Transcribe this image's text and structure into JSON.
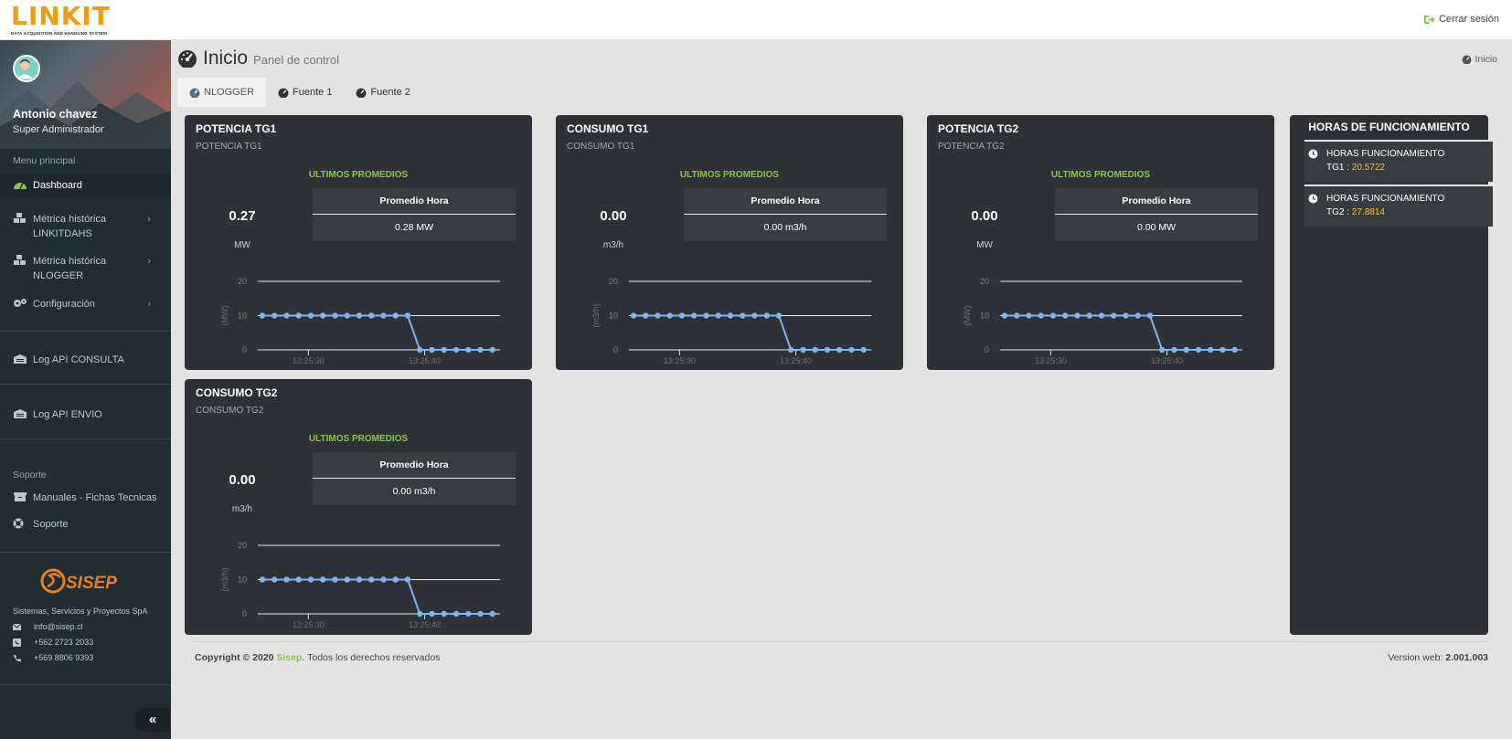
{
  "header": {
    "logo_text": "LINKIT",
    "logo_subtitle": "DATA ACQUISITION AND HANDLING SYSTEM",
    "logout_label": "Cerrar sesión"
  },
  "sidebar": {
    "user_name": "Antonio chavez",
    "user_role": "Super Administrador",
    "menu_header": "Menu principal",
    "items": [
      {
        "label": "Dashboard"
      },
      {
        "label": "Métrica histórica LINKITDAHS"
      },
      {
        "label": "Métrica histórica NLOGGER"
      },
      {
        "label": "Configuración"
      },
      {
        "label": "Log API CONSULTA"
      },
      {
        "label": "Log API ENVIO"
      }
    ],
    "support_header": "Soporte",
    "support_items": [
      {
        "label": "Manuales - Fichas Tecnicas"
      },
      {
        "label": "Soporte"
      }
    ],
    "company_logo_text": "SISEP",
    "company_name": "Sistemas, Servicios y Proyectos SpA",
    "email": "info@sisep.cl",
    "phone1": "+562 2723 2033",
    "phone2": "+569 8806 9393",
    "collapse_label": "«"
  },
  "page": {
    "title": "Inicio",
    "subtitle": "Panel de control",
    "breadcrumb": "Inicio"
  },
  "tabs": [
    {
      "label": "NLOGGER",
      "active": true
    },
    {
      "label": "Fuente 1",
      "active": false
    },
    {
      "label": "Fuente 2",
      "active": false
    }
  ],
  "cards": [
    {
      "title": "POTENCIA TG1",
      "subtitle": "POTENCIA TG1",
      "ult_label": "ULTIMOS PROMEDIOS",
      "avg_header": "Promedio Hora",
      "avg_value": "0.28 MW",
      "value": "0.27",
      "unit": "MW",
      "axis_label": "(MW)"
    },
    {
      "title": "CONSUMO TG1",
      "subtitle": "CONSUMO TG1",
      "ult_label": "ULTIMOS PROMEDIOS",
      "avg_header": "Promedio Hora",
      "avg_value": "0.00 m3/h",
      "value": "0.00",
      "unit": "m3/h",
      "axis_label": "(m3/h)"
    },
    {
      "title": "POTENCIA TG2",
      "subtitle": "POTENCIA TG2",
      "ult_label": "ULTIMOS PROMEDIOS",
      "avg_header": "Promedio Hora",
      "avg_value": "0.00 MW",
      "value": "0.00",
      "unit": "MW",
      "axis_label": "(MW)"
    },
    {
      "title": "CONSUMO TG2",
      "subtitle": "CONSUMO TG2",
      "ult_label": "ULTIMOS PROMEDIOS",
      "avg_header": "Promedio Hora",
      "avg_value": "0.00 m3/h",
      "value": "0.00",
      "unit": "m3/h",
      "axis_label": "(m3/h)"
    }
  ],
  "chart_data": {
    "type": "line",
    "y_ticks": [
      "20",
      "10",
      "0"
    ],
    "ylim": [
      0,
      20
    ],
    "x_ticks": [
      "13:25:30",
      "13:25:40"
    ],
    "values": [
      10,
      10,
      10,
      10,
      10,
      10,
      10,
      10,
      10,
      10,
      10,
      10,
      10,
      0,
      0,
      0,
      0,
      0,
      0,
      0
    ],
    "line_color": "#7cb5ec"
  },
  "hours": {
    "title": "HORAS DE FUNCIONAMIENTO",
    "items": [
      {
        "label": "HORAS FUNCIONAMIENTO",
        "key": "TG1 : ",
        "value": "20.5722"
      },
      {
        "label": "HORAS FUNCIONAMIENTO",
        "key": "TG2 : ",
        "value": "27.8814"
      }
    ]
  },
  "footer": {
    "copyright_prefix": "Copyright © 2020 ",
    "company": "Sisep",
    "copyright_suffix": ". Todos los derechos reservados",
    "version_label": "Version web: ",
    "version": "2.001.003"
  }
}
